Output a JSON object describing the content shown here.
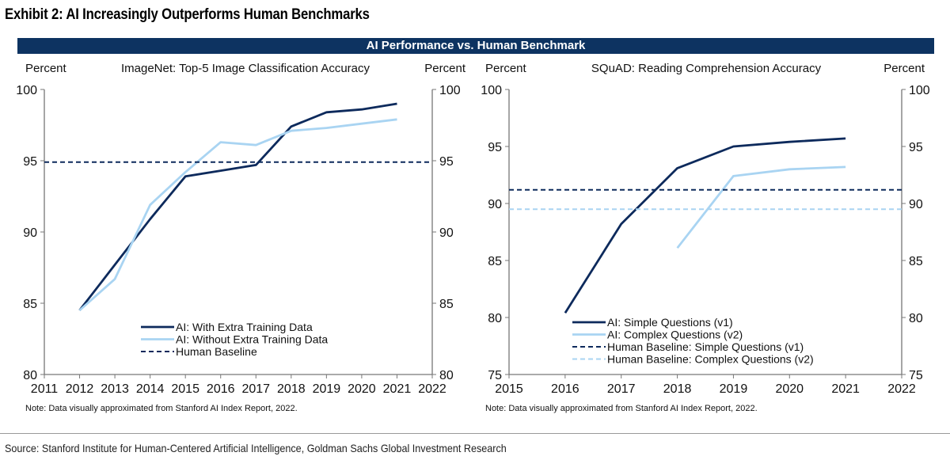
{
  "exhibit_title": "Exhibit 2: AI Increasingly Outperforms Human Benchmarks",
  "banner": "AI Performance vs. Human Benchmark",
  "source": "Source: Stanford Institute for Human-Centered Artificial Intelligence, Goldman Sachs Global Investment Research",
  "colors": {
    "dark": "#0d2a5c",
    "light": "#a9d4f2",
    "banner": "#0d3361"
  },
  "chart_data": [
    {
      "type": "line",
      "title": "ImageNet: Top-5 Image Classification Accuracy",
      "ylabel_left": "Percent",
      "ylabel_right": "Percent",
      "xlim": [
        2011,
        2022
      ],
      "ylim": [
        80,
        100
      ],
      "xticks": [
        2011,
        2012,
        2013,
        2014,
        2015,
        2016,
        2017,
        2018,
        2019,
        2020,
        2021,
        2022
      ],
      "yticks": [
        80,
        85,
        90,
        95,
        100
      ],
      "grid": false,
      "legend": "bottom-center",
      "note": "Note: Data visually approximated from Stanford AI Index Report, 2022.",
      "series": [
        {
          "name": "AI: With Extra Training Data",
          "color": "#0d2a5c",
          "dashed": false,
          "x": [
            2012,
            2013,
            2014,
            2015,
            2016,
            2017,
            2018,
            2019,
            2020,
            2021
          ],
          "values": [
            84.5,
            87.7,
            90.9,
            93.9,
            94.3,
            94.7,
            97.4,
            98.4,
            98.6,
            99.0
          ]
        },
        {
          "name": "AI: Without Extra Training Data",
          "color": "#a9d4f2",
          "dashed": false,
          "x": [
            2012,
            2013,
            2014,
            2015,
            2016,
            2017,
            2018,
            2019,
            2020,
            2021
          ],
          "values": [
            84.5,
            86.7,
            91.9,
            94.2,
            96.3,
            96.1,
            97.1,
            97.3,
            97.6,
            97.9
          ]
        },
        {
          "name": "Human Baseline",
          "color": "#0d2a5c",
          "dashed": true,
          "x": [
            2011,
            2022
          ],
          "values": [
            94.9,
            94.9
          ]
        }
      ]
    },
    {
      "type": "line",
      "title": "SQuAD: Reading Comprehension Accuracy",
      "ylabel_left": "Percent",
      "ylabel_right": "Percent",
      "xlim": [
        2015,
        2022
      ],
      "ylim": [
        75,
        100
      ],
      "xticks": [
        2015,
        2016,
        2017,
        2018,
        2019,
        2020,
        2021,
        2022
      ],
      "yticks": [
        75,
        80,
        85,
        90,
        95,
        100
      ],
      "grid": false,
      "legend": "bottom-center",
      "note": "Note: Data visually approximated from Stanford AI Index Report, 2022.",
      "series": [
        {
          "name": "AI: Simple Questions (v1)",
          "color": "#0d2a5c",
          "dashed": false,
          "x": [
            2016,
            2017,
            2018,
            2019,
            2020,
            2021
          ],
          "values": [
            80.4,
            88.2,
            93.1,
            95.0,
            95.4,
            95.7
          ]
        },
        {
          "name": "AI: Complex Questions (v2)",
          "color": "#a9d4f2",
          "dashed": false,
          "x": [
            2018,
            2019,
            2020,
            2021
          ],
          "values": [
            86.1,
            92.4,
            93.0,
            93.2
          ]
        },
        {
          "name": "Human Baseline: Simple Questions (v1)",
          "color": "#0d2a5c",
          "dashed": true,
          "x": [
            2015,
            2022
          ],
          "values": [
            91.2,
            91.2
          ]
        },
        {
          "name": "Human Baseline: Complex Questions (v2)",
          "color": "#a9d4f2",
          "dashed": true,
          "x": [
            2015,
            2022
          ],
          "values": [
            89.5,
            89.5
          ]
        }
      ]
    }
  ]
}
